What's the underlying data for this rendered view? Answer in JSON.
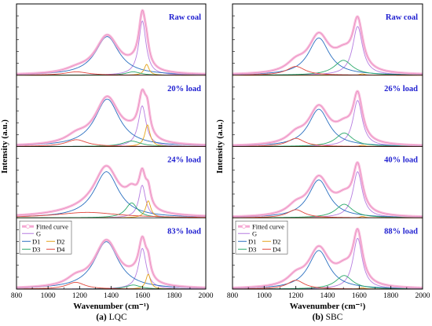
{
  "chart_data": [
    {
      "type": "line",
      "caption_letter": "(a)",
      "caption_text": " LQC",
      "xlabel": "Wavenumber (cm⁻¹)",
      "ylabel": "Intensity (a.u.)",
      "xlim": [
        800,
        2000
      ],
      "x_ticks": [
        "800",
        "1000",
        "1200",
        "1400",
        "1600",
        "1800",
        "2000"
      ],
      "grid": false,
      "legend": {
        "placement": "bottom-panel-top-left",
        "entries": [
          "Fitted curve",
          "G",
          "D1",
          "D2",
          "D3",
          "D4"
        ]
      },
      "panels": [
        {
          "label": "Raw coal",
          "bands": {
            "G": {
              "center": 1598,
              "width": 28,
              "height": 0.8
            },
            "D1": {
              "center": 1375,
              "width": 92,
              "height": 0.57
            },
            "D2": {
              "center": 1625,
              "width": 18,
              "height": 0.16
            },
            "D3": {
              "center": 1540,
              "width": 55,
              "height": 0.05
            },
            "D4": {
              "center": 1180,
              "width": 90,
              "height": 0.05
            }
          }
        },
        {
          "label": "20% load",
          "bands": {
            "G": {
              "center": 1597,
              "width": 30,
              "height": 0.6
            },
            "D1": {
              "center": 1375,
              "width": 95,
              "height": 0.7
            },
            "D2": {
              "center": 1630,
              "width": 20,
              "height": 0.32
            },
            "D3": {
              "center": 1530,
              "width": 70,
              "height": 0.08
            },
            "D4": {
              "center": 1180,
              "width": 80,
              "height": 0.1
            }
          }
        },
        {
          "label": "24% load",
          "bands": {
            "G": {
              "center": 1597,
              "width": 26,
              "height": 0.48
            },
            "D1": {
              "center": 1370,
              "width": 95,
              "height": 0.68
            },
            "D2": {
              "center": 1635,
              "width": 20,
              "height": 0.25
            },
            "D3": {
              "center": 1530,
              "width": 45,
              "height": 0.22
            },
            "D4": {
              "center": 1250,
              "width": 240,
              "height": 0.08
            }
          }
        },
        {
          "label": "83% load",
          "bands": {
            "G": {
              "center": 1598,
              "width": 30,
              "height": 0.6
            },
            "D1": {
              "center": 1370,
              "width": 95,
              "height": 0.7
            },
            "D2": {
              "center": 1635,
              "width": 18,
              "height": 0.22
            },
            "D3": {
              "center": 1540,
              "width": 55,
              "height": 0.06
            },
            "D4": {
              "center": 1175,
              "width": 70,
              "height": 0.1
            }
          }
        }
      ]
    },
    {
      "type": "line",
      "caption_letter": "(b)",
      "caption_text": " SBC",
      "xlabel": "Wavenumber (cm⁻¹)",
      "ylabel": "Intensity (a.u.)",
      "xlim": [
        800,
        2000
      ],
      "x_ticks": [
        "800",
        "1000",
        "1200",
        "1400",
        "1600",
        "1800",
        "2000"
      ],
      "grid": false,
      "legend": {
        "placement": "bottom-panel-top-left",
        "entries": [
          "Fitted curve",
          "G",
          "D1",
          "D2",
          "D3",
          "D4"
        ]
      },
      "panels": [
        {
          "label": "Raw coal",
          "bands": {
            "G": {
              "center": 1590,
              "width": 38,
              "height": 0.72
            },
            "D1": {
              "center": 1345,
              "width": 80,
              "height": 0.55
            },
            "D2": {
              "center": 1620,
              "width": 20,
              "height": 0.02
            },
            "D3": {
              "center": 1500,
              "width": 70,
              "height": 0.22
            },
            "D4": {
              "center": 1200,
              "width": 70,
              "height": 0.13
            }
          }
        },
        {
          "label": "26% load",
          "bands": {
            "G": {
              "center": 1590,
              "width": 36,
              "height": 0.68
            },
            "D1": {
              "center": 1345,
              "width": 80,
              "height": 0.55
            },
            "D2": {
              "center": 1620,
              "width": 20,
              "height": 0.02
            },
            "D3": {
              "center": 1505,
              "width": 65,
              "height": 0.2
            },
            "D4": {
              "center": 1200,
              "width": 65,
              "height": 0.12
            }
          }
        },
        {
          "label": "40% load",
          "bands": {
            "G": {
              "center": 1590,
              "width": 36,
              "height": 0.68
            },
            "D1": {
              "center": 1345,
              "width": 80,
              "height": 0.56
            },
            "D2": {
              "center": 1620,
              "width": 20,
              "height": 0.02
            },
            "D3": {
              "center": 1505,
              "width": 65,
              "height": 0.2
            },
            "D4": {
              "center": 1200,
              "width": 65,
              "height": 0.12
            }
          }
        },
        {
          "label": "88% load",
          "bands": {
            "G": {
              "center": 1590,
              "width": 36,
              "height": 0.75
            },
            "D1": {
              "center": 1345,
              "width": 80,
              "height": 0.57
            },
            "D2": {
              "center": 1620,
              "width": 20,
              "height": 0.02
            },
            "D3": {
              "center": 1505,
              "width": 65,
              "height": 0.2
            },
            "D4": {
              "center": 1200,
              "width": 65,
              "height": 0.13
            }
          }
        }
      ]
    }
  ],
  "colors": {
    "Fitted curve": "#f5a8d2",
    "G": "#b57ce0",
    "D1": "#2a6fc0",
    "D2": "#e3a21a",
    "D3": "#2aa86a",
    "D4": "#e0463c"
  }
}
